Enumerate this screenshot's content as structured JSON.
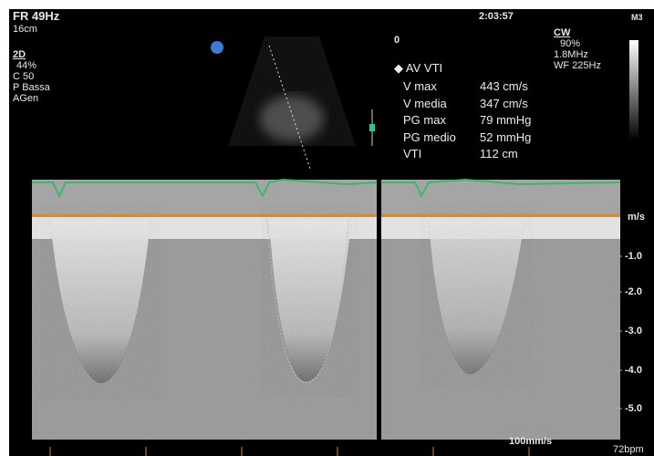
{
  "header": {
    "frame_rate": "FR 49Hz",
    "depth": "16cm",
    "time": "2:03:57",
    "probe": "M3"
  },
  "mode_2d": {
    "title": "2D",
    "lines": [
      "44%",
      "C 50",
      "P Bassa",
      "AGen"
    ]
  },
  "mode_cw": {
    "title": "CW",
    "lines": [
      "90%",
      "1.8MHz",
      "WF 225Hz"
    ]
  },
  "gate_label": "0",
  "measurement": {
    "title": "AV VTI",
    "rows": [
      [
        "V max",
        "443 cm/s"
      ],
      [
        "V media",
        "347 cm/s"
      ],
      [
        "PG max",
        "79 mmHg"
      ],
      [
        "PG medio",
        "52 mmHg"
      ],
      [
        "VTI",
        "112 cm"
      ]
    ]
  },
  "scale": {
    "unit": "m/s",
    "labels": [
      "-1.0",
      "-2.0",
      "-3.0",
      "-4.0",
      "-5.0"
    ]
  },
  "footer": {
    "sweep": "100mm/s",
    "heart_rate": "72bpm"
  }
}
